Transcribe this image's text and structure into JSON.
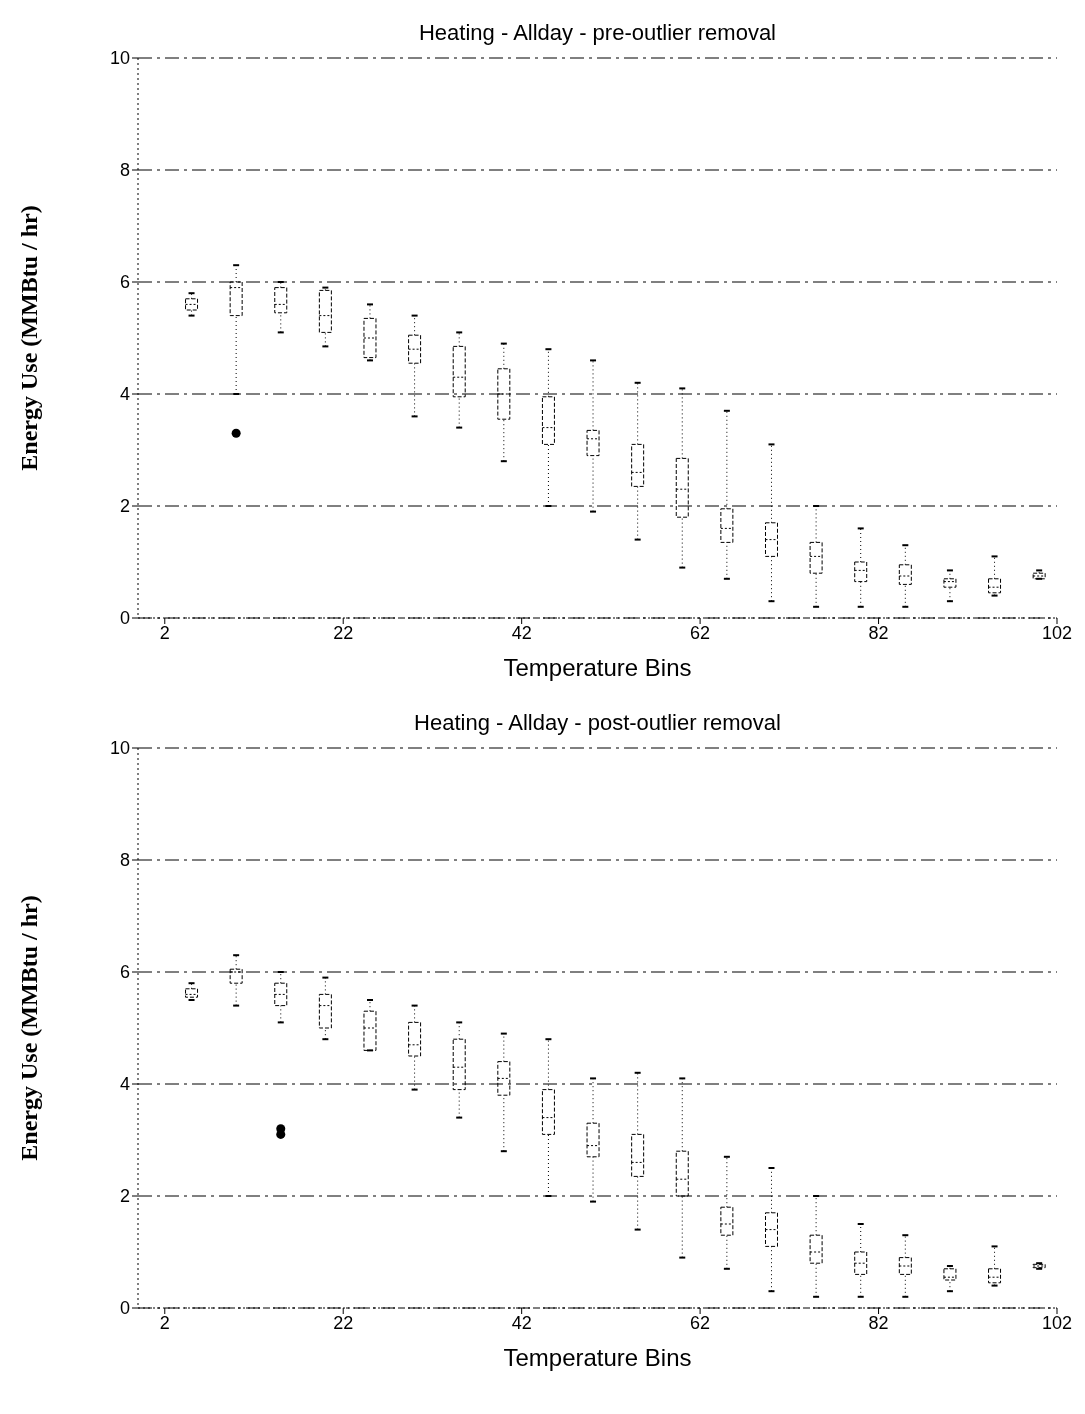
{
  "chart_data": [
    {
      "type": "box",
      "title": "Heating - Allday - pre-outlier removal",
      "xlabel": "Temperature Bins",
      "ylabel": "Energy Use (MMBtu / hr)",
      "color": "#000000",
      "grid": "y",
      "xlim": [
        -1,
        102
      ],
      "xticks": [
        2,
        22,
        42,
        62,
        82,
        102
      ],
      "ylim": [
        0,
        10
      ],
      "yticks": [
        0,
        2,
        4,
        6,
        8,
        10
      ],
      "x": [
        5,
        10,
        15,
        20,
        25,
        30,
        35,
        40,
        45,
        50,
        55,
        60,
        65,
        70,
        75,
        80,
        85,
        90,
        95,
        100
      ],
      "boxes": [
        {
          "low": 5.4,
          "q1": 5.5,
          "median": 5.6,
          "q3": 5.7,
          "high": 5.8
        },
        {
          "low": 4.0,
          "q1": 5.4,
          "median": 5.9,
          "q3": 6.0,
          "high": 6.3,
          "outliers": [
            3.3
          ]
        },
        {
          "low": 5.1,
          "q1": 5.45,
          "median": 5.6,
          "q3": 5.9,
          "high": 6.0
        },
        {
          "low": 4.85,
          "q1": 5.1,
          "median": 5.4,
          "q3": 5.85,
          "high": 5.9
        },
        {
          "low": 4.6,
          "q1": 4.65,
          "median": 5.0,
          "q3": 5.35,
          "high": 5.6
        },
        {
          "low": 3.6,
          "q1": 4.55,
          "median": 4.8,
          "q3": 5.05,
          "high": 5.4
        },
        {
          "low": 3.4,
          "q1": 3.95,
          "median": 4.3,
          "q3": 4.85,
          "high": 5.1
        },
        {
          "low": 2.8,
          "q1": 3.55,
          "median": 4.0,
          "q3": 4.45,
          "high": 4.9
        },
        {
          "low": 2.0,
          "q1": 3.1,
          "median": 3.4,
          "q3": 3.95,
          "high": 4.8
        },
        {
          "low": 1.9,
          "q1": 2.9,
          "median": 3.2,
          "q3": 3.35,
          "high": 4.6
        },
        {
          "low": 1.4,
          "q1": 2.35,
          "median": 2.6,
          "q3": 3.1,
          "high": 4.2
        },
        {
          "low": 0.9,
          "q1": 1.8,
          "median": 2.3,
          "q3": 2.85,
          "high": 4.1
        },
        {
          "low": 0.7,
          "q1": 1.35,
          "median": 1.6,
          "q3": 1.95,
          "high": 3.7
        },
        {
          "low": 0.3,
          "q1": 1.1,
          "median": 1.4,
          "q3": 1.7,
          "high": 3.1
        },
        {
          "low": 0.2,
          "q1": 0.8,
          "median": 1.1,
          "q3": 1.35,
          "high": 2.0
        },
        {
          "low": 0.2,
          "q1": 0.65,
          "median": 0.85,
          "q3": 1.0,
          "high": 1.6
        },
        {
          "low": 0.2,
          "q1": 0.6,
          "median": 0.75,
          "q3": 0.95,
          "high": 1.3
        },
        {
          "low": 0.3,
          "q1": 0.55,
          "median": 0.65,
          "q3": 0.7,
          "high": 0.85
        },
        {
          "low": 0.4,
          "q1": 0.45,
          "median": 0.55,
          "q3": 0.7,
          "high": 1.1
        },
        {
          "low": 0.7,
          "q1": 0.7,
          "median": 0.75,
          "q3": 0.8,
          "high": 0.85
        }
      ]
    },
    {
      "type": "box",
      "title": "Heating - Allday - post-outlier removal",
      "xlabel": "Temperature Bins",
      "ylabel": "Energy Use (MMBtu / hr)",
      "color": "#000000",
      "grid": "y",
      "xlim": [
        -1,
        102
      ],
      "xticks": [
        2,
        22,
        42,
        62,
        82,
        102
      ],
      "ylim": [
        0,
        10
      ],
      "yticks": [
        0,
        2,
        4,
        6,
        8,
        10
      ],
      "x": [
        5,
        10,
        15,
        20,
        25,
        30,
        35,
        40,
        45,
        50,
        55,
        60,
        65,
        70,
        75,
        80,
        85,
        90,
        95,
        100
      ],
      "boxes": [
        {
          "low": 5.5,
          "q1": 5.55,
          "median": 5.6,
          "q3": 5.7,
          "high": 5.8
        },
        {
          "low": 5.4,
          "q1": 5.8,
          "median": 6.0,
          "q3": 6.05,
          "high": 6.3
        },
        {
          "low": 5.1,
          "q1": 5.4,
          "median": 5.6,
          "q3": 5.8,
          "high": 6.0,
          "outliers": [
            3.2,
            3.1
          ]
        },
        {
          "low": 4.8,
          "q1": 5.0,
          "median": 5.4,
          "q3": 5.6,
          "high": 5.9
        },
        {
          "low": 4.6,
          "q1": 4.6,
          "median": 5.0,
          "q3": 5.3,
          "high": 5.5
        },
        {
          "low": 3.9,
          "q1": 4.5,
          "median": 4.7,
          "q3": 5.1,
          "high": 5.4
        },
        {
          "low": 3.4,
          "q1": 3.9,
          "median": 4.3,
          "q3": 4.8,
          "high": 5.1
        },
        {
          "low": 2.8,
          "q1": 3.8,
          "median": 4.1,
          "q3": 4.4,
          "high": 4.9
        },
        {
          "low": 2.0,
          "q1": 3.1,
          "median": 3.4,
          "q3": 3.9,
          "high": 4.8
        },
        {
          "low": 1.9,
          "q1": 2.7,
          "median": 2.9,
          "q3": 3.3,
          "high": 4.1
        },
        {
          "low": 1.4,
          "q1": 2.35,
          "median": 2.6,
          "q3": 3.1,
          "high": 4.2
        },
        {
          "low": 0.9,
          "q1": 2.0,
          "median": 2.3,
          "q3": 2.8,
          "high": 4.1
        },
        {
          "low": 0.7,
          "q1": 1.3,
          "median": 1.5,
          "q3": 1.8,
          "high": 2.7
        },
        {
          "low": 0.3,
          "q1": 1.1,
          "median": 1.4,
          "q3": 1.7,
          "high": 2.5
        },
        {
          "low": 0.2,
          "q1": 0.8,
          "median": 1.0,
          "q3": 1.3,
          "high": 2.0
        },
        {
          "low": 0.2,
          "q1": 0.6,
          "median": 0.8,
          "q3": 1.0,
          "high": 1.5
        },
        {
          "low": 0.2,
          "q1": 0.6,
          "median": 0.75,
          "q3": 0.9,
          "high": 1.3
        },
        {
          "low": 0.3,
          "q1": 0.5,
          "median": 0.55,
          "q3": 0.7,
          "high": 0.75
        },
        {
          "low": 0.4,
          "q1": 0.45,
          "median": 0.55,
          "q3": 0.7,
          "high": 1.1
        },
        {
          "low": 0.7,
          "q1": 0.72,
          "median": 0.75,
          "q3": 0.78,
          "high": 0.8
        }
      ]
    }
  ]
}
